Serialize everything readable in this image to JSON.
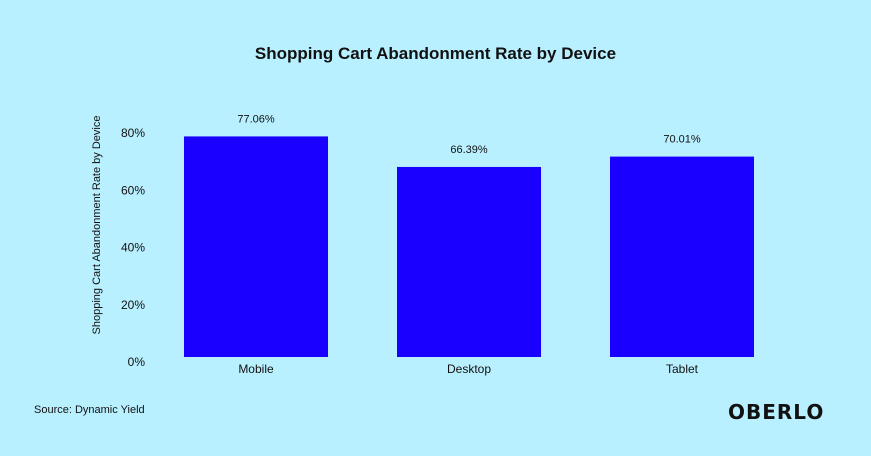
{
  "chart_data": {
    "type": "bar",
    "title": "Shopping Cart Abandonment Rate by Device",
    "xlabel": "",
    "ylabel": "Shopping Cart Abandonment Rate by Device",
    "categories": [
      "Mobile",
      "Desktop",
      "Tablet"
    ],
    "values": [
      77.06,
      66.39,
      70.01
    ],
    "data_labels": [
      "77.06%",
      "66.39%",
      "70.01%"
    ],
    "ylim": [
      0,
      80
    ],
    "yticks": [
      0,
      20,
      40,
      60,
      80
    ],
    "ytick_labels": [
      "0%",
      "20%",
      "40%",
      "60%",
      "80%"
    ],
    "grid": false,
    "bar_color": "#1a00ff"
  },
  "source": "Source: Dynamic Yield",
  "logo": "OBERLO",
  "background_color": "#b9f0ff"
}
